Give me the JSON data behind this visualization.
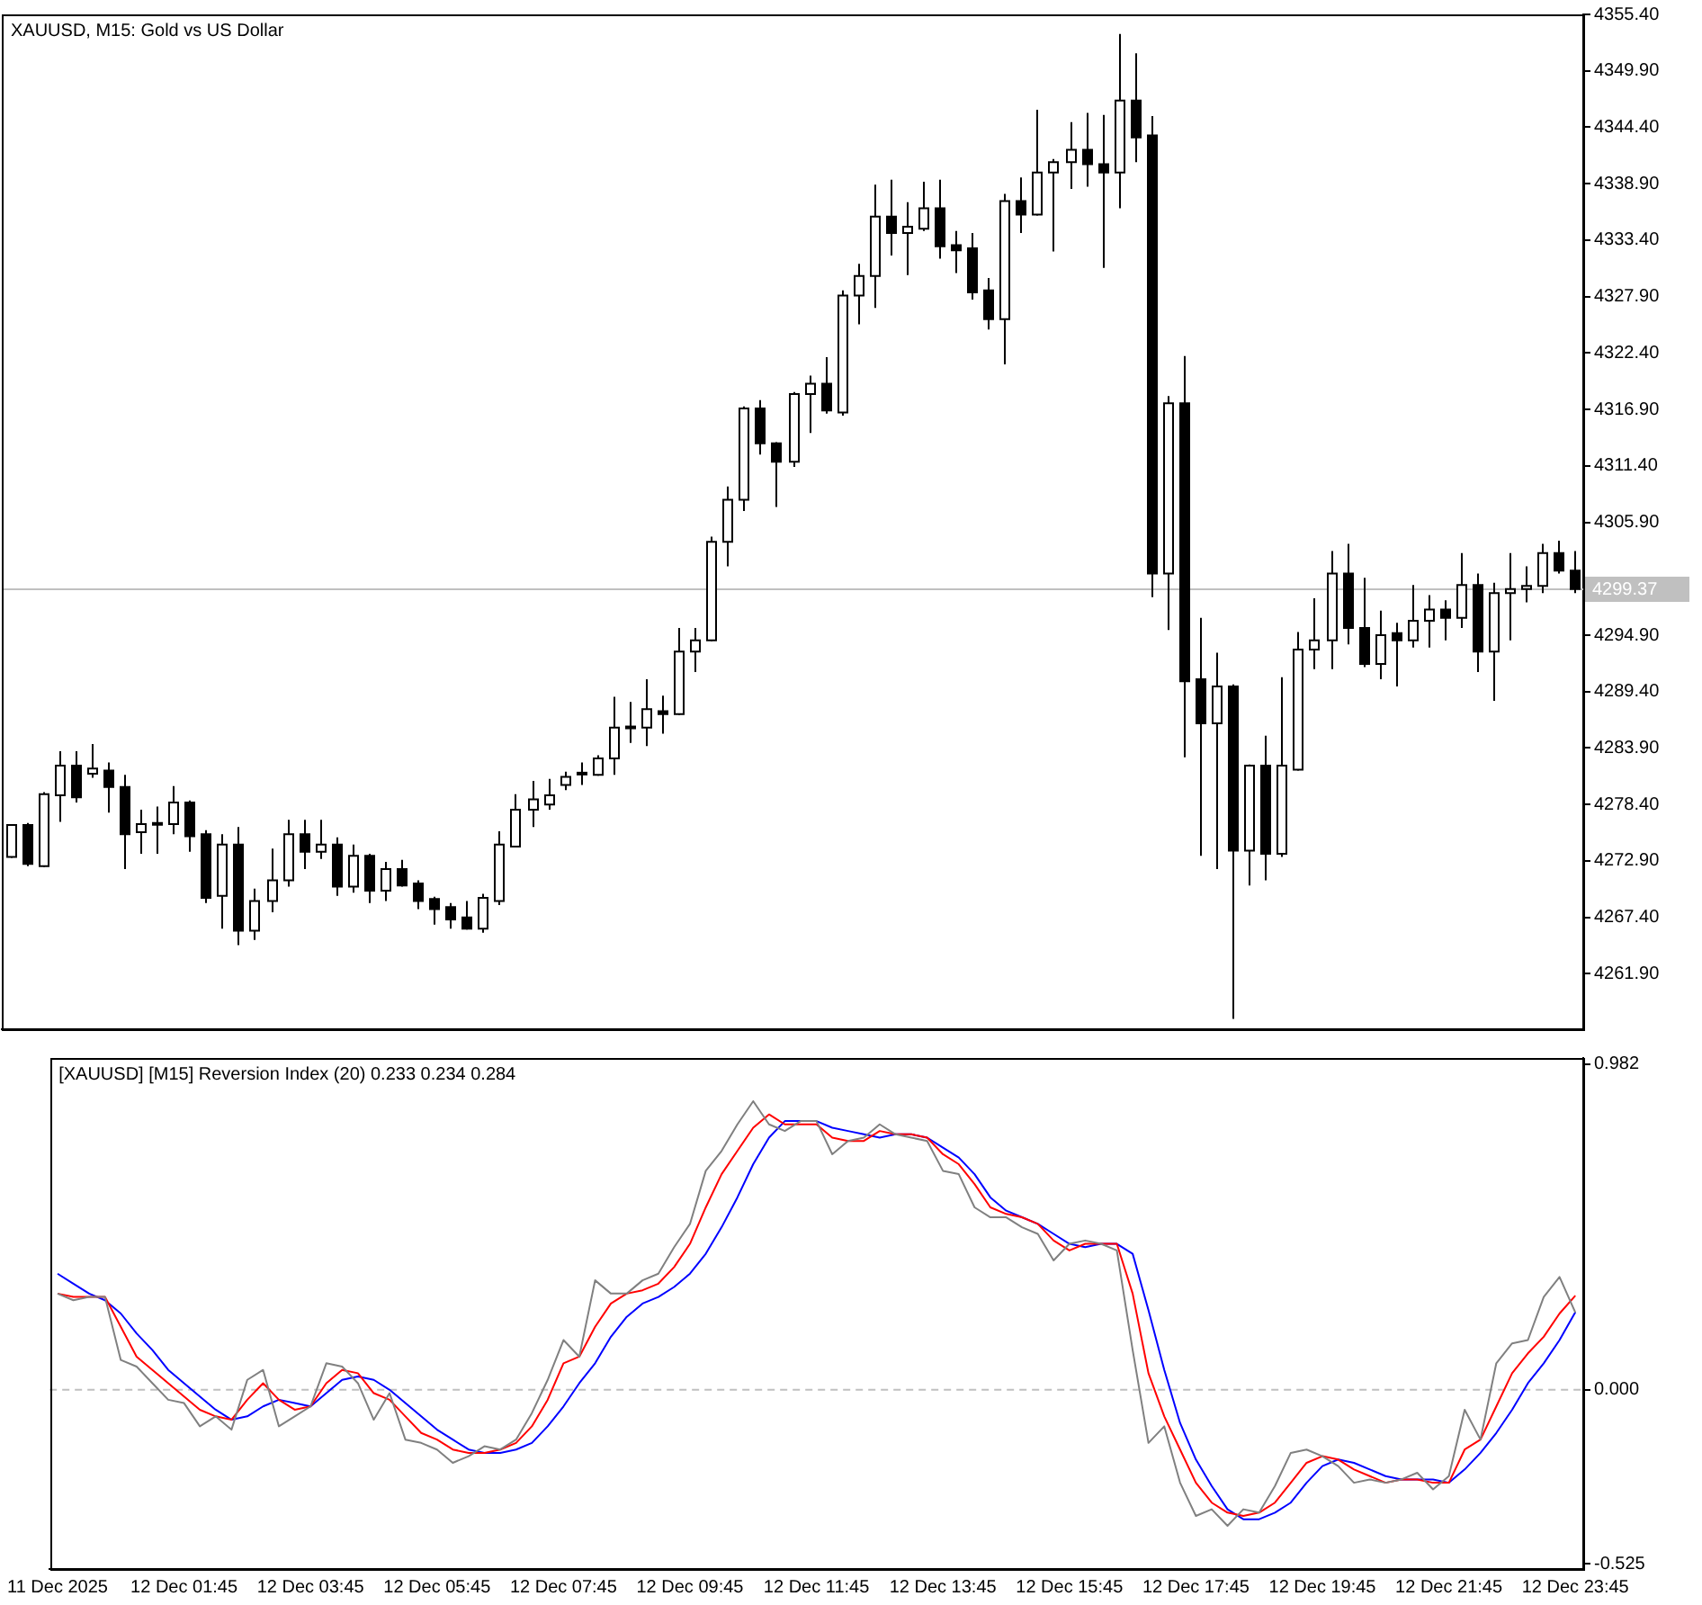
{
  "chart_data": [
    {
      "type": "candlestick",
      "title": "XAUUSD, M15: Gold vs US Dollar",
      "categories": [
        null,
        null,
        null,
        null,
        null,
        null,
        null,
        null,
        null,
        null,
        null,
        null,
        null,
        null,
        null,
        null,
        null,
        null,
        null,
        null,
        null,
        null,
        null,
        null,
        null,
        null,
        null,
        null,
        null,
        null,
        null,
        null,
        null,
        null,
        null,
        null,
        null,
        null,
        null,
        null,
        null,
        null,
        null,
        null,
        null,
        null,
        null,
        null,
        null,
        null,
        null,
        null,
        null,
        null,
        null,
        null,
        null,
        null,
        null,
        null,
        null,
        null,
        null,
        null,
        null,
        null,
        null,
        null,
        null,
        null,
        null,
        null,
        null,
        null,
        null,
        null,
        null,
        null,
        null,
        null,
        null,
        null,
        null,
        null,
        null,
        null,
        null,
        null,
        null,
        null,
        null,
        null,
        null,
        null,
        null,
        null,
        null
      ],
      "color": "#000000",
      "colors": [
        "#ffffff",
        "#000000",
        "#ffffff",
        "#ffffff",
        "#000000",
        "#ffffff",
        "#000000",
        "#000000",
        "#ffffff",
        "#ffffff",
        "#ffffff",
        "#000000",
        "#000000",
        "#ffffff",
        "#000000",
        "#ffffff",
        "#ffffff",
        "#ffffff",
        "#000000",
        "#ffffff",
        "#000000",
        "#ffffff",
        "#000000",
        "#ffffff",
        "#000000",
        "#000000",
        "#000000",
        "#000000",
        "#000000",
        "#ffffff",
        "#ffffff",
        "#ffffff",
        "#ffffff",
        "#ffffff",
        "#ffffff",
        "#ffffff",
        "#ffffff",
        "#ffffff",
        "#ffffff",
        "#ffffff",
        "#000000",
        "#ffffff",
        "#ffffff",
        "#ffffff",
        "#ffffff",
        "#ffffff",
        "#000000",
        "#000000",
        "#ffffff",
        "#ffffff",
        "#000000",
        "#ffffff",
        "#ffffff",
        "#ffffff",
        "#000000",
        "#ffffff",
        "#ffffff",
        "#000000",
        "#000000",
        "#000000",
        "#000000",
        "#ffffff",
        "#000000",
        "#ffffff",
        "#ffffff",
        "#ffffff",
        "#000000",
        "#000000",
        "#ffffff",
        "#000000",
        "#000000",
        "#ffffff",
        "#000000",
        "#000000",
        "#ffffff",
        "#000000",
        "#ffffff",
        "#000000",
        "#ffffff",
        "#ffffff",
        "#ffffff",
        "#ffffff",
        "#000000",
        "#000000",
        "#ffffff",
        "#000000",
        "#ffffff",
        "#ffffff",
        "#000000",
        "#ffffff",
        "#000000",
        "#ffffff",
        "#ffffff",
        "#ffffff",
        "#ffffff",
        "#000000",
        "#000000"
      ],
      "ohlc": [
        [
          4273.3,
          4276.5,
          4273.2,
          4276.4
        ],
        [
          4276.4,
          4276.6,
          4272.4,
          4272.6
        ],
        [
          4272.4,
          4279.6,
          4272.3,
          4279.4
        ],
        [
          4279.3,
          4283.6,
          4276.7,
          4282.2
        ],
        [
          4282.2,
          4283.6,
          4278.6,
          4279.1
        ],
        [
          4281.4,
          4284.3,
          4281.0,
          4281.9
        ],
        [
          4281.7,
          4282.5,
          4277.6,
          4280.1
        ],
        [
          4280.1,
          4281.3,
          4272.1,
          4275.5
        ],
        [
          4275.7,
          4277.9,
          4273.6,
          4276.5
        ],
        [
          4276.5,
          4278.2,
          4273.6,
          4276.6
        ],
        [
          4276.5,
          4280.2,
          4275.5,
          4278.6
        ],
        [
          4278.6,
          4278.8,
          4273.8,
          4275.3
        ],
        [
          4275.5,
          4275.9,
          4268.8,
          4269.3
        ],
        [
          4269.5,
          4275.5,
          4266.3,
          4274.5
        ],
        [
          4274.5,
          4276.2,
          4264.7,
          4266.1
        ],
        [
          4266.1,
          4270.2,
          4265.2,
          4269.0
        ],
        [
          4269.0,
          4274.1,
          4267.9,
          4271.0
        ],
        [
          4271.0,
          4276.9,
          4270.4,
          4275.5
        ],
        [
          4275.5,
          4276.9,
          4272.1,
          4273.8
        ],
        [
          4273.8,
          4276.9,
          4273.1,
          4274.5
        ],
        [
          4274.5,
          4275.2,
          4269.5,
          4270.4
        ],
        [
          4270.4,
          4274.5,
          4269.8,
          4273.4
        ],
        [
          4273.4,
          4273.6,
          4268.8,
          4270.0
        ],
        [
          4270.0,
          4272.8,
          4269.0,
          4272.1
        ],
        [
          4272.1,
          4273.0,
          4270.4,
          4270.5
        ],
        [
          4270.7,
          4271.0,
          4268.2,
          4269.0
        ],
        [
          4269.2,
          4269.4,
          4266.7,
          4268.2
        ],
        [
          4268.4,
          4268.8,
          4266.3,
          4267.2
        ],
        [
          4267.4,
          4269.0,
          4266.2,
          4266.3
        ],
        [
          4266.3,
          4269.7,
          4265.9,
          4269.3
        ],
        [
          4269.0,
          4275.8,
          4268.6,
          4274.5
        ],
        [
          4274.3,
          4279.4,
          4274.2,
          4277.9
        ],
        [
          4277.9,
          4280.7,
          4276.2,
          4278.9
        ],
        [
          4278.4,
          4280.9,
          4277.9,
          4279.3
        ],
        [
          4280.3,
          4281.6,
          4279.8,
          4281.1
        ],
        [
          4281.4,
          4282.5,
          4280.3,
          4281.5
        ],
        [
          4281.3,
          4283.2,
          4281.2,
          4282.9
        ],
        [
          4282.9,
          4288.9,
          4281.3,
          4285.9
        ],
        [
          4285.9,
          4288.4,
          4284.4,
          4286.0
        ],
        [
          4285.9,
          4290.6,
          4284.1,
          4287.7
        ],
        [
          4287.5,
          4289.0,
          4285.3,
          4287.2
        ],
        [
          4287.2,
          4295.6,
          4287.1,
          4293.3
        ],
        [
          4293.3,
          4295.6,
          4291.3,
          4294.4
        ],
        [
          4294.4,
          4304.5,
          4294.3,
          4304.0
        ],
        [
          4304.0,
          4309.4,
          4301.6,
          4308.1
        ],
        [
          4308.1,
          4317.2,
          4307.0,
          4317.0
        ],
        [
          4317.0,
          4317.8,
          4312.5,
          4313.6
        ],
        [
          4313.6,
          4313.7,
          4307.4,
          4311.8
        ],
        [
          4311.8,
          4318.6,
          4311.3,
          4318.4
        ],
        [
          4318.4,
          4320.2,
          4314.6,
          4319.4
        ],
        [
          4319.4,
          4322.0,
          4316.5,
          4316.8
        ],
        [
          4316.6,
          4328.5,
          4316.3,
          4328.0
        ],
        [
          4328.0,
          4331.1,
          4325.2,
          4329.9
        ],
        [
          4329.9,
          4338.8,
          4326.8,
          4335.7
        ],
        [
          4335.7,
          4339.3,
          4331.9,
          4334.1
        ],
        [
          4334.1,
          4337.1,
          4330.0,
          4334.7
        ],
        [
          4334.5,
          4339.1,
          4334.3,
          4336.5
        ],
        [
          4336.5,
          4339.3,
          4331.6,
          4332.8
        ],
        [
          4332.9,
          4334.3,
          4330.2,
          4332.4
        ],
        [
          4332.6,
          4334.1,
          4327.6,
          4328.3
        ],
        [
          4328.5,
          4329.7,
          4324.7,
          4325.7
        ],
        [
          4325.7,
          4337.9,
          4321.3,
          4337.2
        ],
        [
          4337.2,
          4339.5,
          4334.1,
          4335.9
        ],
        [
          4335.9,
          4346.1,
          4335.8,
          4340.0
        ],
        [
          4340.0,
          4341.3,
          4332.3,
          4341.0
        ],
        [
          4341.0,
          4344.9,
          4338.4,
          4342.2
        ],
        [
          4342.2,
          4345.8,
          4338.6,
          4340.8
        ],
        [
          4340.8,
          4345.6,
          4330.7,
          4340.0
        ],
        [
          4340.0,
          4353.5,
          4336.5,
          4347.0
        ],
        [
          4347.0,
          4351.6,
          4341.0,
          4343.4
        ],
        [
          4343.6,
          4345.5,
          4298.6,
          4300.9
        ],
        [
          4300.9,
          4318.2,
          4295.4,
          4317.5
        ],
        [
          4317.5,
          4322.1,
          4283.0,
          4290.4
        ],
        [
          4290.6,
          4296.6,
          4273.4,
          4286.3
        ],
        [
          4286.3,
          4293.2,
          4272.1,
          4289.9
        ],
        [
          4289.9,
          4290.1,
          4257.5,
          4273.9
        ],
        [
          4273.9,
          4282.3,
          4270.5,
          4282.2
        ],
        [
          4282.2,
          4285.1,
          4271.0,
          4273.6
        ],
        [
          4273.6,
          4290.8,
          4273.3,
          4282.2
        ],
        [
          4281.8,
          4295.2,
          4281.7,
          4293.5
        ],
        [
          4293.5,
          4298.5,
          4291.6,
          4294.4
        ],
        [
          4294.4,
          4303.1,
          4291.6,
          4300.9
        ],
        [
          4300.9,
          4303.8,
          4294.0,
          4295.6
        ],
        [
          4295.6,
          4300.5,
          4291.8,
          4292.1
        ],
        [
          4292.1,
          4297.3,
          4290.6,
          4294.9
        ],
        [
          4295.1,
          4296.1,
          4289.9,
          4294.4
        ],
        [
          4294.4,
          4299.8,
          4293.7,
          4296.3
        ],
        [
          4296.3,
          4298.8,
          4293.7,
          4297.4
        ],
        [
          4297.4,
          4298.3,
          4294.4,
          4296.6
        ],
        [
          4296.6,
          4302.9,
          4295.6,
          4299.8
        ],
        [
          4299.8,
          4300.9,
          4291.3,
          4293.3
        ],
        [
          4293.3,
          4300.0,
          4288.5,
          4299.0
        ],
        [
          4299.0,
          4302.9,
          4294.4,
          4299.4
        ],
        [
          4299.4,
          4301.6,
          4298.1,
          4299.7
        ],
        [
          4299.7,
          4303.8,
          4299.0,
          4302.9
        ],
        [
          4302.9,
          4304.1,
          4300.9,
          4301.2
        ],
        [
          4301.2,
          4303.1,
          4299.0,
          4299.4
        ]
      ],
      "ylim": [
        4256.5,
        4355.4
      ],
      "yticks": [
        {
          "value": 4355.4,
          "label": "4355.40"
        },
        {
          "value": 4349.9,
          "label": "4349.90"
        },
        {
          "value": 4344.4,
          "label": "4344.40"
        },
        {
          "value": 4338.9,
          "label": "4338.90"
        },
        {
          "value": 4333.4,
          "label": "4333.40"
        },
        {
          "value": 4327.9,
          "label": "4327.90"
        },
        {
          "value": 4322.4,
          "label": "4322.40"
        },
        {
          "value": 4316.9,
          "label": "4316.90"
        },
        {
          "value": 4311.4,
          "label": "4311.40"
        },
        {
          "value": 4305.9,
          "label": "4305.90"
        },
        {
          "value": 4294.9,
          "label": "4294.90"
        },
        {
          "value": 4289.4,
          "label": "4289.40"
        },
        {
          "value": 4283.9,
          "label": "4283.90"
        },
        {
          "value": 4278.4,
          "label": "4278.40"
        },
        {
          "value": 4272.9,
          "label": "4272.90"
        },
        {
          "value": 4267.4,
          "label": "4267.40"
        },
        {
          "value": 4261.9,
          "label": "4261.90"
        }
      ],
      "ref_lines": [
        {
          "axis": "y",
          "value": 4299.37,
          "label": "4299.37",
          "color": "#c0c0c0",
          "line_style": "solid"
        }
      ],
      "tick_labels": "y",
      "legend": false,
      "grid": false
    },
    {
      "type": "line",
      "title": "[XAUUSD] [M15] Reversion Index (20) 0.233 0.234 0.284",
      "categories": [
        "11 Dec 2025",
        null,
        null,
        null,
        null,
        null,
        null,
        null,
        "12 Dec 01:45",
        null,
        null,
        null,
        null,
        null,
        null,
        null,
        "12 Dec 03:45",
        null,
        null,
        null,
        null,
        null,
        null,
        null,
        "12 Dec 05:45",
        null,
        null,
        null,
        null,
        null,
        null,
        null,
        "12 Dec 07:45",
        null,
        null,
        null,
        null,
        null,
        null,
        null,
        "12 Dec 09:45",
        null,
        null,
        null,
        null,
        null,
        null,
        null,
        "12 Dec 11:45",
        null,
        null,
        null,
        null,
        null,
        null,
        null,
        "12 Dec 13:45",
        null,
        null,
        null,
        null,
        null,
        null,
        null,
        "12 Dec 15:45",
        null,
        null,
        null,
        null,
        null,
        null,
        null,
        "12 Dec 17:45",
        null,
        null,
        null,
        null,
        null,
        null,
        null,
        "12 Dec 19:45",
        null,
        null,
        null,
        null,
        null,
        null,
        null,
        "12 Dec 21:45",
        null,
        null,
        null,
        null,
        null,
        null,
        null,
        "12 Dec 23:45"
      ],
      "series": [
        {
          "color": "#808080",
          "values": [
            0.29,
            0.27,
            0.28,
            0.28,
            0.09,
            0.07,
            0.02,
            -0.03,
            -0.04,
            -0.11,
            -0.08,
            -0.12,
            0.03,
            0.06,
            -0.11,
            -0.08,
            -0.05,
            0.08,
            0.07,
            0.02,
            -0.09,
            -0.01,
            -0.15,
            -0.16,
            -0.18,
            -0.22,
            -0.2,
            -0.17,
            -0.18,
            -0.15,
            -0.07,
            0.03,
            0.15,
            0.1,
            0.33,
            0.29,
            0.29,
            0.33,
            0.35,
            0.43,
            0.5,
            0.66,
            0.72,
            0.8,
            0.87,
            0.8,
            0.78,
            0.81,
            0.81,
            0.71,
            0.75,
            0.76,
            0.8,
            0.77,
            0.76,
            0.75,
            0.66,
            0.65,
            0.55,
            0.52,
            0.52,
            0.49,
            0.47,
            0.39,
            0.44,
            0.45,
            0.44,
            0.42,
            0.12,
            -0.16,
            -0.11,
            -0.28,
            -0.38,
            -0.36,
            -0.41,
            -0.36,
            -0.37,
            -0.29,
            -0.19,
            -0.18,
            -0.2,
            -0.23,
            -0.28,
            -0.27,
            -0.28,
            -0.27,
            -0.25,
            -0.3,
            -0.26,
            -0.06,
            -0.15,
            0.08,
            0.14,
            0.15,
            0.28,
            0.34,
            0.233
          ]
        },
        {
          "color": "#ff0000",
          "values": [
            0.29,
            0.28,
            0.28,
            0.28,
            0.19,
            0.1,
            0.06,
            0.02,
            -0.02,
            -0.06,
            -0.08,
            -0.09,
            -0.03,
            0.02,
            -0.03,
            -0.06,
            -0.05,
            0.02,
            0.06,
            0.05,
            -0.01,
            -0.03,
            -0.08,
            -0.13,
            -0.15,
            -0.18,
            -0.19,
            -0.19,
            -0.18,
            -0.16,
            -0.11,
            -0.03,
            0.08,
            0.1,
            0.19,
            0.26,
            0.29,
            0.3,
            0.32,
            0.37,
            0.44,
            0.55,
            0.65,
            0.72,
            0.79,
            0.83,
            0.8,
            0.8,
            0.8,
            0.76,
            0.75,
            0.75,
            0.78,
            0.77,
            0.77,
            0.76,
            0.71,
            0.68,
            0.62,
            0.55,
            0.53,
            0.52,
            0.5,
            0.45,
            0.42,
            0.44,
            0.44,
            0.44,
            0.29,
            0.05,
            -0.08,
            -0.18,
            -0.28,
            -0.34,
            -0.37,
            -0.38,
            -0.37,
            -0.34,
            -0.28,
            -0.22,
            -0.2,
            -0.21,
            -0.24,
            -0.26,
            -0.28,
            -0.27,
            -0.27,
            -0.28,
            -0.28,
            -0.18,
            -0.15,
            -0.05,
            0.05,
            0.11,
            0.16,
            0.23,
            0.284
          ]
        },
        {
          "color": "#0000ff",
          "values": [
            0.35,
            0.32,
            0.29,
            0.27,
            0.23,
            0.17,
            0.12,
            0.06,
            0.02,
            -0.02,
            -0.06,
            -0.09,
            -0.08,
            -0.05,
            -0.03,
            -0.04,
            -0.05,
            -0.01,
            0.03,
            0.04,
            0.03,
            0.0,
            -0.04,
            -0.08,
            -0.12,
            -0.15,
            -0.18,
            -0.19,
            -0.19,
            -0.18,
            -0.16,
            -0.11,
            -0.05,
            0.02,
            0.08,
            0.16,
            0.22,
            0.26,
            0.28,
            0.31,
            0.35,
            0.41,
            0.49,
            0.58,
            0.68,
            0.76,
            0.81,
            0.81,
            0.81,
            0.79,
            0.78,
            0.77,
            0.76,
            0.77,
            0.77,
            0.76,
            0.73,
            0.7,
            0.65,
            0.58,
            0.54,
            0.52,
            0.5,
            0.47,
            0.44,
            0.43,
            0.44,
            0.44,
            0.41,
            0.24,
            0.06,
            -0.1,
            -0.21,
            -0.29,
            -0.36,
            -0.39,
            -0.39,
            -0.37,
            -0.34,
            -0.28,
            -0.23,
            -0.21,
            -0.22,
            -0.24,
            -0.26,
            -0.27,
            -0.27,
            -0.27,
            -0.28,
            -0.24,
            -0.19,
            -0.13,
            -0.06,
            0.02,
            0.08,
            0.15,
            0.234
          ]
        }
      ],
      "ylim": [
        -0.54,
        1.0
      ],
      "yticks": [
        0.982,
        {
          "value": 0,
          "label": "0.000"
        },
        -0.525
      ],
      "ref_lines": [
        {
          "axis": "y",
          "value": 0,
          "color": "#c0c0c0",
          "line_style": "dashed"
        }
      ],
      "marker": "none",
      "line_style": "solid",
      "legend": false,
      "grid": false
    }
  ]
}
